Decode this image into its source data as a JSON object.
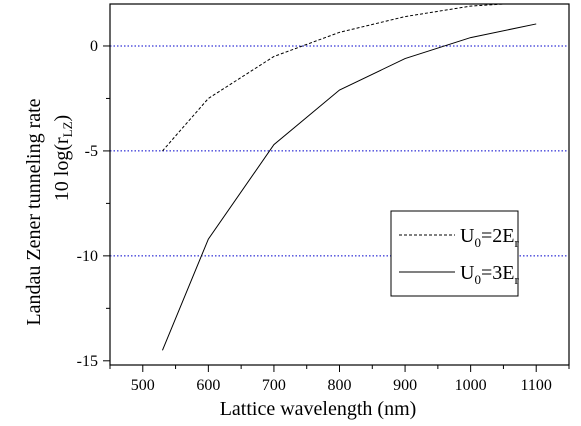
{
  "chart_data": {
    "type": "line",
    "xlabel": "Lattice wavelength (nm)",
    "ylabel_line1": "Landau Zener tunneling rate",
    "ylabel_line2": {
      "prefix": "10 log(r",
      "sub": "LZ",
      "suffix": ")"
    },
    "xlim": [
      450,
      1150
    ],
    "ylim": [
      -15.2,
      2.0
    ],
    "xticks": [
      500,
      600,
      700,
      800,
      900,
      1000,
      1100
    ],
    "yticks": [
      0,
      -5,
      -10,
      -15
    ],
    "grid": {
      "horizontal_dotted_at": [
        0,
        -5,
        -10
      ],
      "color": "#0000cc"
    },
    "legend_position": "right-center",
    "series": [
      {
        "legend_main": "U",
        "legend_sub1": "0",
        "legend_mid": "=2E",
        "legend_sub2": "r",
        "style": "dashed",
        "x": [
          530,
          600,
          700,
          800,
          900,
          1000,
          1050
        ],
        "y": [
          -5.0,
          -2.5,
          -0.5,
          0.65,
          1.4,
          1.9,
          2.0
        ]
      },
      {
        "legend_main": "U",
        "legend_sub1": "0",
        "legend_mid": "=3E",
        "legend_sub2": "r",
        "style": "solid",
        "x": [
          530,
          600,
          700,
          800,
          900,
          1000,
          1100
        ],
        "y": [
          -14.5,
          -9.2,
          -4.7,
          -2.1,
          -0.6,
          0.4,
          1.05
        ]
      }
    ]
  }
}
